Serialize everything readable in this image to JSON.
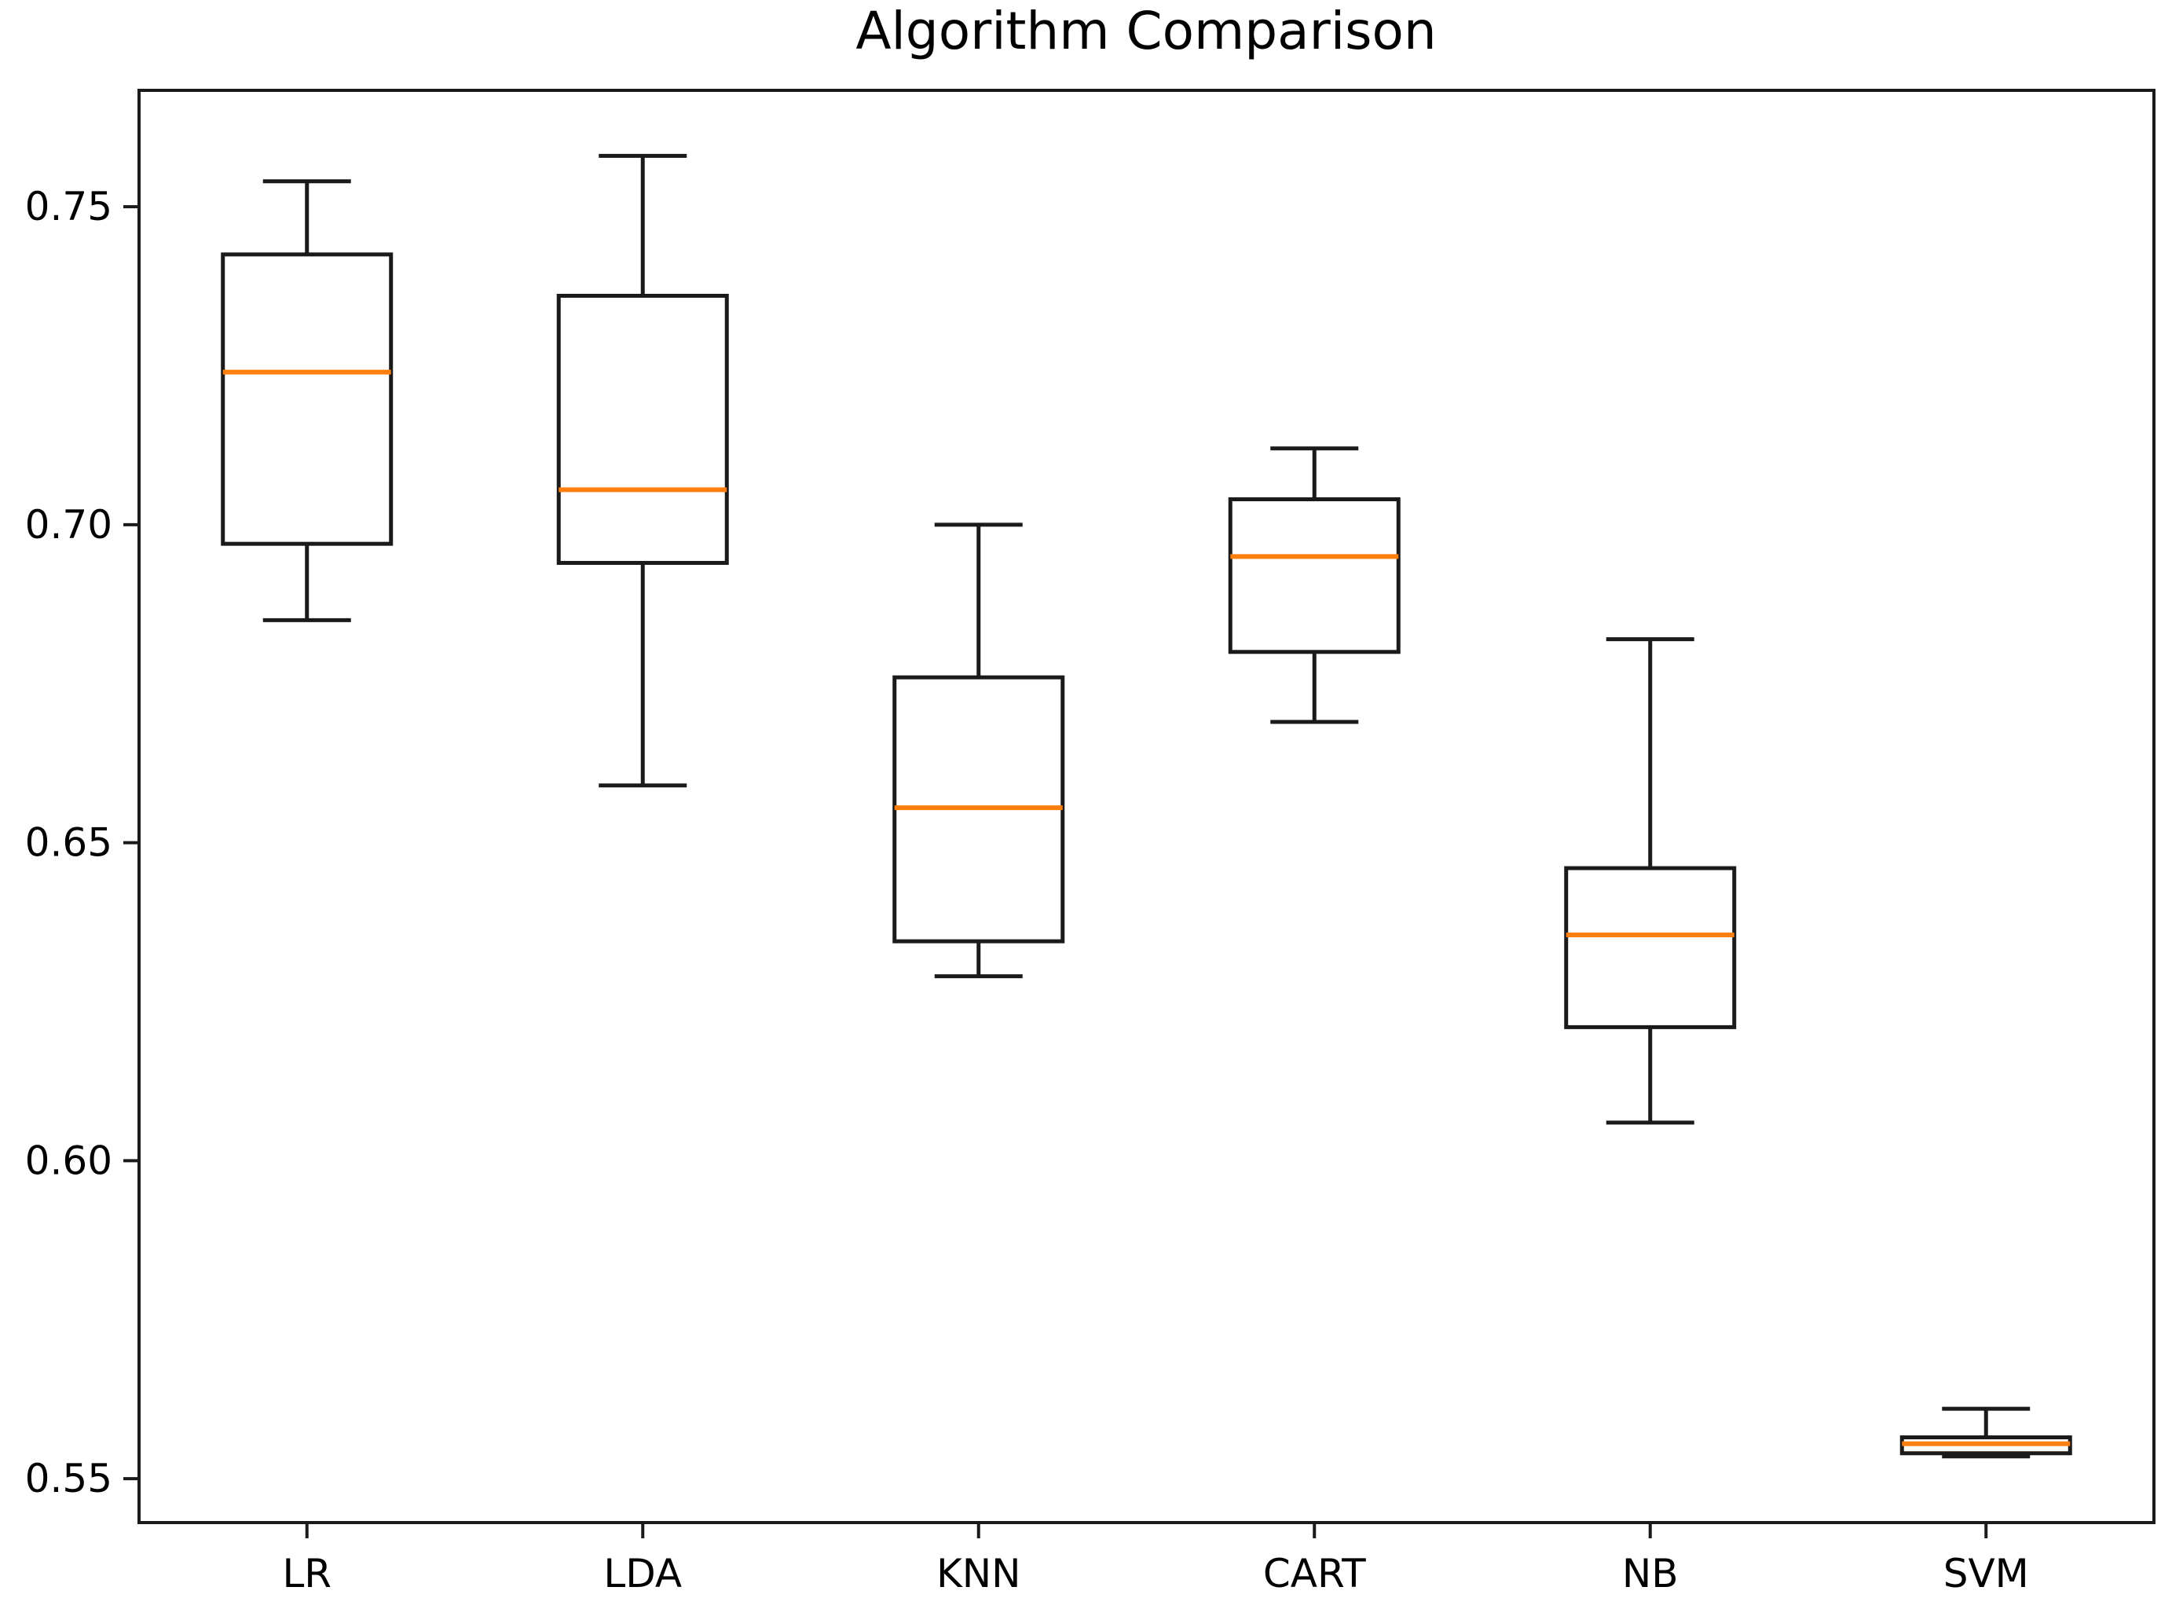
{
  "chart_data": {
    "type": "box",
    "title": "Algorithm Comparison",
    "categories": [
      "LR",
      "LDA",
      "KNN",
      "CART",
      "NB",
      "SVM"
    ],
    "series": [
      {
        "name": "LR",
        "whisker_low": 0.685,
        "q1": 0.697,
        "median": 0.724,
        "q3": 0.7425,
        "whisker_high": 0.754
      },
      {
        "name": "LDA",
        "whisker_low": 0.659,
        "q1": 0.694,
        "median": 0.7055,
        "q3": 0.736,
        "whisker_high": 0.758
      },
      {
        "name": "KNN",
        "whisker_low": 0.629,
        "q1": 0.6345,
        "median": 0.6555,
        "q3": 0.676,
        "whisker_high": 0.7
      },
      {
        "name": "CART",
        "whisker_low": 0.669,
        "q1": 0.68,
        "median": 0.695,
        "q3": 0.704,
        "whisker_high": 0.712
      },
      {
        "name": "NB",
        "whisker_low": 0.606,
        "q1": 0.621,
        "median": 0.6355,
        "q3": 0.646,
        "whisker_high": 0.682
      },
      {
        "name": "SVM",
        "whisker_low": 0.5535,
        "q1": 0.554,
        "median": 0.5555,
        "q3": 0.5565,
        "whisker_high": 0.561
      }
    ],
    "yticks": [
      0.75,
      0.7,
      0.65,
      0.6,
      0.55
    ],
    "ytick_labels": [
      "0.75",
      "0.70",
      "0.65",
      "0.60",
      "0.55"
    ],
    "ylim": [
      0.5431,
      0.7683
    ],
    "xlabel": "",
    "ylabel": "",
    "grid": false,
    "legend": "none",
    "colors": {
      "box_stroke": "#1a1a1a",
      "median": "#ff7f0e",
      "axis": "#1a1a1a",
      "text": "#000000",
      "background": "#ffffff"
    }
  }
}
